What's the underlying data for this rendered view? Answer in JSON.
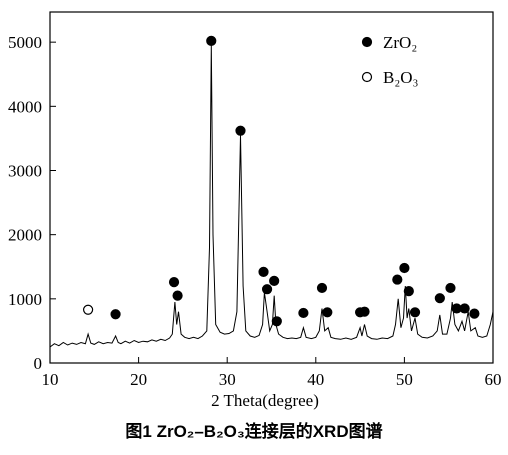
{
  "chart_data": {
    "type": "line",
    "caption": "图1  ZrO₂–B₂O₃连接层的XRD图谱",
    "xlabel": "2 Theta(degree)",
    "xlim": [
      10,
      60
    ],
    "xticks": [
      10,
      20,
      30,
      40,
      50,
      60
    ],
    "ylim": [
      0,
      5470
    ],
    "yticks": [
      0,
      1000,
      2000,
      3000,
      4000,
      5000
    ],
    "legend": "upper right",
    "series": [
      {
        "type": "line",
        "color": "#000000",
        "x": [
          10,
          10.5,
          11,
          11.5,
          12,
          12.5,
          13,
          13.5,
          14,
          14.3,
          14.6,
          15,
          15.5,
          16,
          16.5,
          17,
          17.4,
          17.7,
          18,
          18.5,
          19,
          19.5,
          20,
          20.5,
          21,
          21.5,
          22,
          22.5,
          23,
          23.5,
          23.8,
          24.1,
          24.3,
          24.5,
          24.8,
          25.2,
          25.7,
          26.2,
          26.7,
          27.2,
          27.7,
          28.0,
          28.2,
          28.4,
          28.7,
          29.2,
          29.7,
          30.2,
          30.7,
          31.1,
          31.5,
          31.8,
          32.1,
          32.6,
          33.1,
          33.6,
          34.0,
          34.2,
          34.5,
          34.8,
          35.1,
          35.3,
          35.5,
          35.8,
          36.3,
          36.8,
          37.3,
          37.8,
          38.3,
          38.6,
          38.9,
          39.5,
          40.0,
          40.4,
          40.7,
          41.0,
          41.4,
          41.7,
          42.2,
          42.8,
          43.4,
          44.0,
          44.6,
          45.0,
          45.2,
          45.5,
          45.8,
          46.3,
          46.9,
          47.5,
          48.1,
          48.7,
          49.0,
          49.3,
          49.6,
          49.9,
          50.1,
          50.3,
          50.5,
          50.8,
          51.2,
          51.5,
          52.0,
          52.6,
          53.2,
          53.7,
          54.0,
          54.3,
          54.8,
          55.2,
          55.4,
          55.7,
          56.1,
          56.5,
          56.8,
          57.2,
          57.5,
          58.0,
          58.3,
          58.8,
          59.3,
          59.7,
          60.0
        ],
        "values": [
          250,
          300,
          270,
          320,
          280,
          310,
          290,
          320,
          300,
          450,
          310,
          290,
          330,
          300,
          320,
          310,
          420,
          320,
          300,
          340,
          310,
          350,
          320,
          340,
          330,
          360,
          340,
          370,
          350,
          390,
          450,
          950,
          600,
          800,
          450,
          400,
          380,
          400,
          380,
          420,
          500,
          1800,
          4950,
          2000,
          600,
          480,
          450,
          460,
          500,
          800,
          3550,
          1200,
          500,
          420,
          400,
          430,
          600,
          1100,
          800,
          500,
          600,
          1050,
          600,
          450,
          400,
          380,
          390,
          380,
          400,
          550,
          400,
          380,
          400,
          500,
          850,
          500,
          550,
          400,
          380,
          370,
          390,
          370,
          400,
          550,
          420,
          600,
          420,
          380,
          370,
          390,
          380,
          420,
          600,
          1000,
          550,
          700,
          1200,
          700,
          850,
          500,
          700,
          450,
          400,
          390,
          420,
          500,
          750,
          450,
          450,
          700,
          950,
          600,
          500,
          650,
          500,
          800,
          500,
          550,
          420,
          400,
          420,
          600,
          800
        ]
      },
      {
        "type": "scatter",
        "name": "ZrO₂",
        "marker": "filled",
        "color": "#000000",
        "x": [
          17.4,
          24.0,
          24.4,
          28.2,
          31.5,
          34.1,
          34.5,
          35.3,
          35.6,
          38.6,
          40.7,
          41.3,
          45.0,
          45.5,
          49.2,
          50.0,
          50.5,
          51.2,
          54.0,
          55.2,
          55.9,
          56.8,
          57.9
        ],
        "values": [
          760,
          1260,
          1050,
          5020,
          3620,
          1420,
          1150,
          1280,
          650,
          780,
          1170,
          790,
          790,
          800,
          1300,
          1480,
          1120,
          790,
          1010,
          1170,
          850,
          850,
          770
        ]
      },
      {
        "type": "scatter",
        "name": "B₂O₃",
        "marker": "open",
        "color": "#000000",
        "x": [
          14.3
        ],
        "values": [
          830
        ]
      }
    ]
  }
}
